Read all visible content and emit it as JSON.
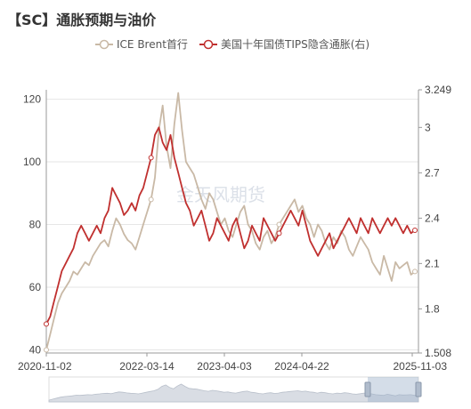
{
  "title": "【SC】通胀预期与油价",
  "watermark": "金天风期货",
  "colors": {
    "brent": "#c9b9a6",
    "tips": "#c0302f",
    "grid": "#e6e6e6",
    "axis": "#999999"
  },
  "legend": [
    {
      "name": "ICE Brent首行",
      "color": "#c9b9a6"
    },
    {
      "name": "美国十年国债TIPS隐含通胀(右)",
      "color": "#c0302f"
    }
  ],
  "chart_data": {
    "type": "line",
    "x_ticks": [
      "2020-11-02",
      "2022-03-14",
      "2023-04-03",
      "2024-04-22",
      "2025-11-03"
    ],
    "y_left_ticks": [
      "40",
      "60",
      "80",
      "100",
      "120"
    ],
    "y_right_ticks": [
      "1.508",
      "1.8",
      "2.1",
      "2.4",
      "2.7",
      "3",
      "3.249"
    ],
    "y_left_range": [
      39,
      123
    ],
    "y_right_range": [
      1.508,
      3.249
    ],
    "grid": "horizontal",
    "legend_position": "top-center",
    "series": [
      {
        "name": "ICE Brent首行",
        "axis": "left",
        "values": [
          40,
          45,
          50,
          55,
          58,
          60,
          62,
          65,
          64,
          66,
          68,
          67,
          70,
          72,
          74,
          75,
          73,
          78,
          82,
          80,
          77,
          75,
          74,
          72,
          76,
          80,
          84,
          88,
          95,
          110,
          118,
          105,
          98,
          112,
          122,
          110,
          100,
          98,
          96,
          92,
          88,
          85,
          90,
          88,
          84,
          80,
          82,
          78,
          76,
          80,
          84,
          86,
          80,
          78,
          74,
          72,
          76,
          78,
          74,
          76,
          80,
          82,
          84,
          86,
          88,
          84,
          86,
          82,
          80,
          76,
          80,
          78,
          74,
          72,
          76,
          74,
          78,
          76,
          72,
          70,
          73,
          76,
          74,
          72,
          68,
          66,
          64,
          70,
          66,
          62,
          68,
          66,
          67,
          68,
          64,
          65
        ]
      },
      {
        "name": "美国十年国债TIPS隐含通胀(右)",
        "axis": "right",
        "values": [
          1.7,
          1.75,
          1.85,
          1.95,
          2.05,
          2.1,
          2.15,
          2.2,
          2.3,
          2.35,
          2.3,
          2.25,
          2.3,
          2.35,
          2.3,
          2.4,
          2.45,
          2.6,
          2.55,
          2.5,
          2.42,
          2.45,
          2.5,
          2.45,
          2.55,
          2.6,
          2.7,
          2.8,
          2.95,
          3.0,
          2.9,
          2.85,
          2.95,
          2.8,
          2.7,
          2.6,
          2.5,
          2.45,
          2.35,
          2.4,
          2.45,
          2.35,
          2.25,
          2.3,
          2.4,
          2.35,
          2.3,
          2.25,
          2.35,
          2.4,
          2.3,
          2.2,
          2.25,
          2.35,
          2.3,
          2.25,
          2.4,
          2.35,
          2.3,
          2.25,
          2.3,
          2.35,
          2.4,
          2.45,
          2.4,
          2.35,
          2.45,
          2.35,
          2.25,
          2.2,
          2.15,
          2.2,
          2.25,
          2.3,
          2.2,
          2.25,
          2.3,
          2.35,
          2.4,
          2.35,
          2.3,
          2.4,
          2.35,
          2.3,
          2.4,
          2.35,
          2.3,
          2.35,
          2.4,
          2.35,
          2.4,
          2.35,
          2.3,
          2.35,
          2.3,
          2.32
        ]
      }
    ]
  }
}
